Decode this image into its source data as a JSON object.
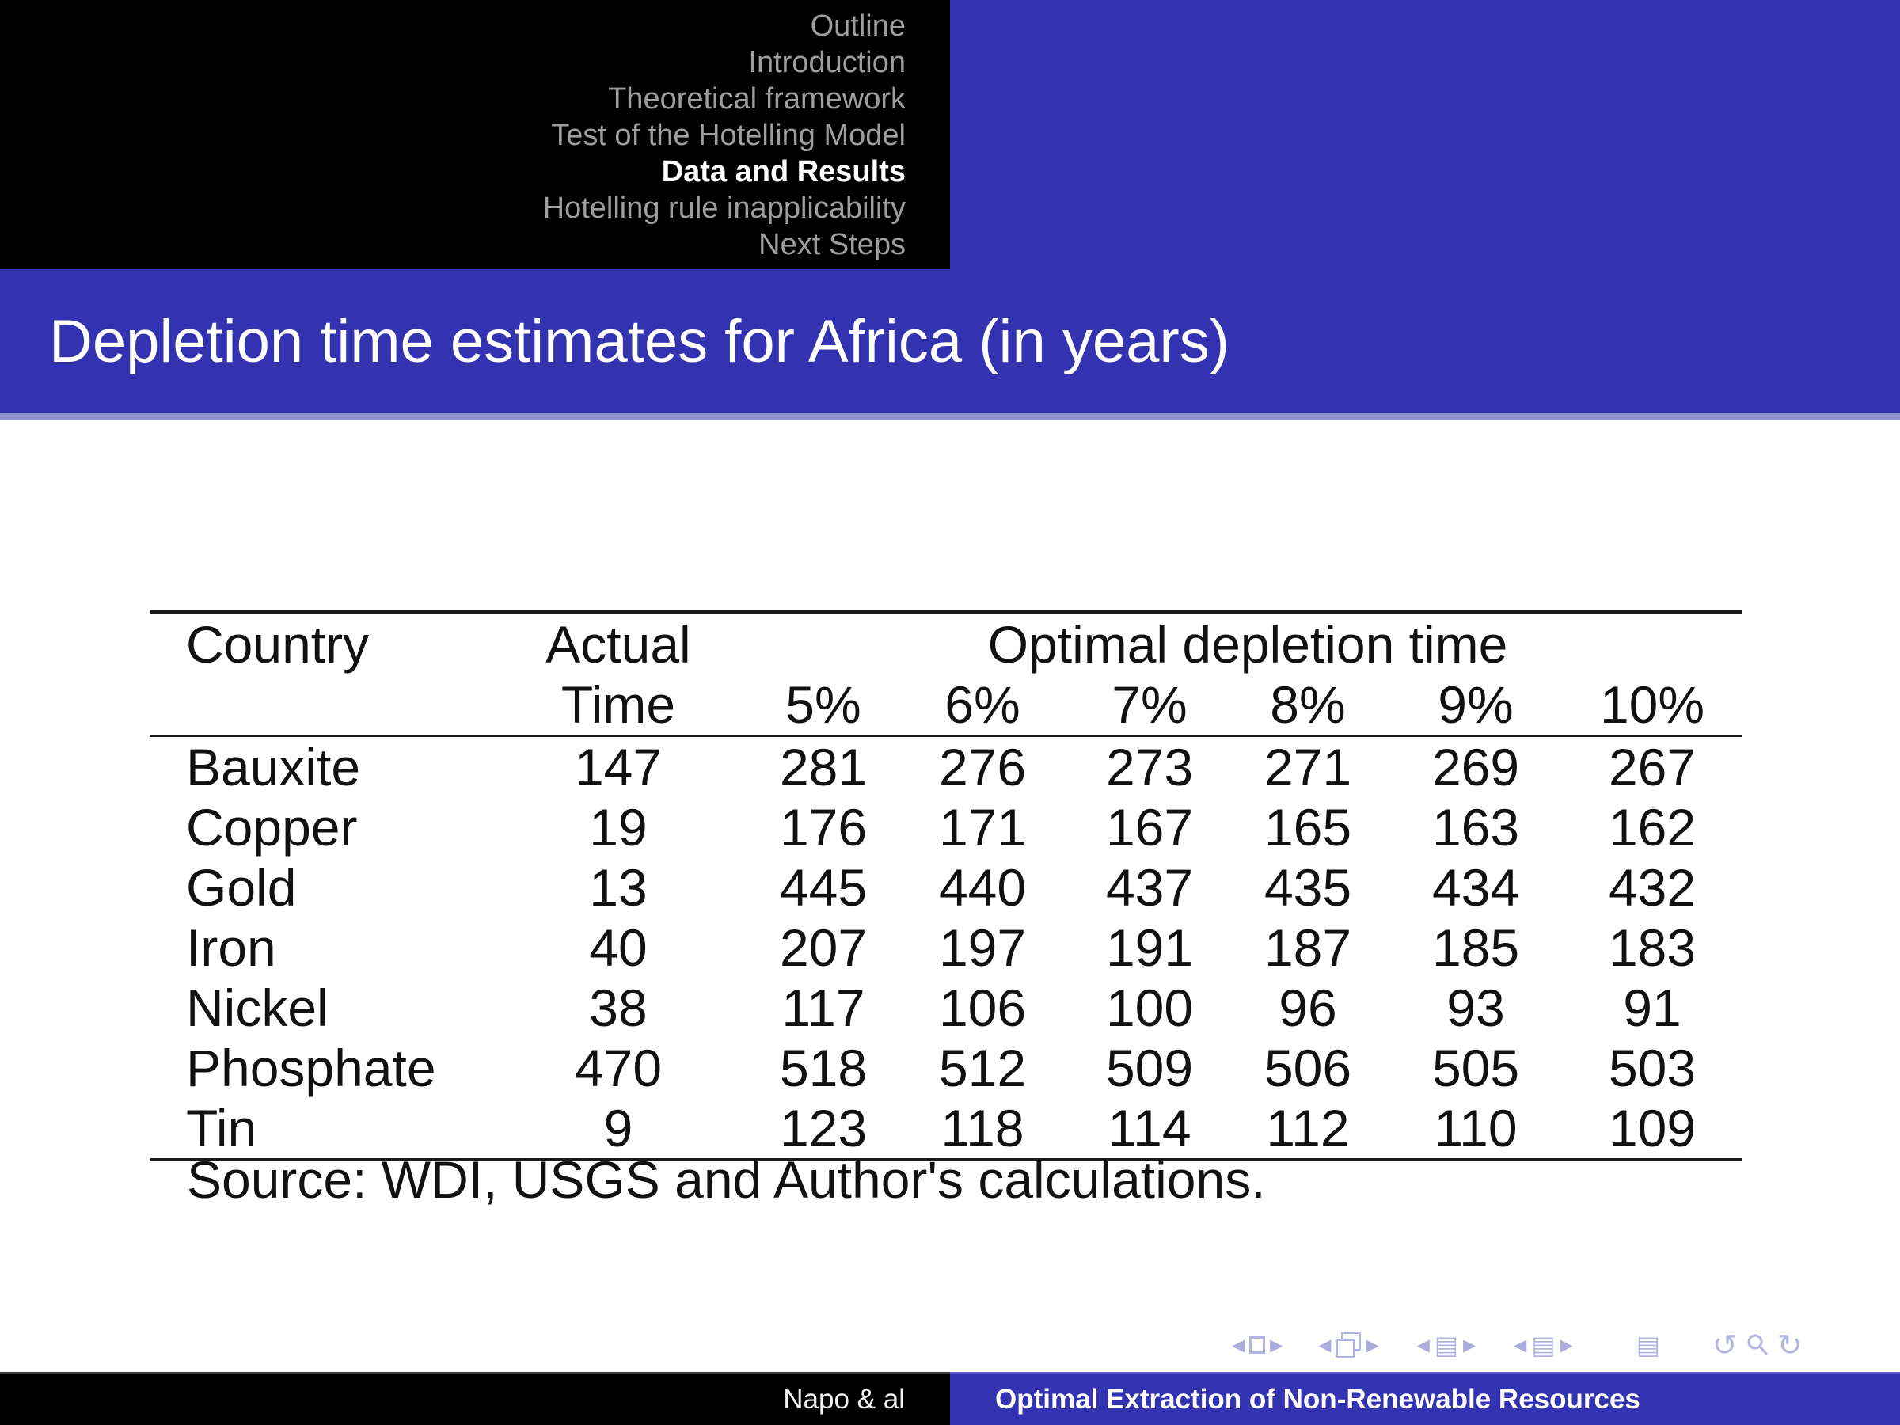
{
  "colors": {
    "accent_blue": "#3333b2",
    "title_strip": "#8e90ce",
    "nav_inactive_text": "#9e9e9e",
    "nav_active_text": "#ffffff",
    "nav_symbols": "#b4b4e0",
    "header_background": "#000000",
    "body_background": "#ffffff",
    "table_text": "#111111"
  },
  "header": {
    "nav_items": [
      {
        "label": "Outline",
        "active": false
      },
      {
        "label": "Introduction",
        "active": false
      },
      {
        "label": "Theoretical framework",
        "active": false
      },
      {
        "label": "Test of the Hotelling Model",
        "active": false
      },
      {
        "label": "Data and Results",
        "active": true
      },
      {
        "label": "Hotelling rule inapplicability",
        "active": false
      },
      {
        "label": "Next Steps",
        "active": false
      }
    ]
  },
  "title_bar": {
    "title": "Depletion time estimates for Africa (in years)"
  },
  "table": {
    "col_country_header": "Country",
    "col_actual_header_line1": "Actual",
    "col_actual_header_line2": "Time",
    "span_header": "Optimal depletion time",
    "rate_headers": [
      "5%",
      "6%",
      "7%",
      "8%",
      "9%",
      "10%"
    ],
    "rows": [
      {
        "country": "Bauxite",
        "actual": "147",
        "values": [
          "281",
          "276",
          "273",
          "271",
          "269",
          "267"
        ]
      },
      {
        "country": "Copper",
        "actual": "19",
        "values": [
          "176",
          "171",
          "167",
          "165",
          "163",
          "162"
        ]
      },
      {
        "country": "Gold",
        "actual": "13",
        "values": [
          "445",
          "440",
          "437",
          "435",
          "434",
          "432"
        ]
      },
      {
        "country": "Iron",
        "actual": "40",
        "values": [
          "207",
          "197",
          "191",
          "187",
          "185",
          "183"
        ]
      },
      {
        "country": "Nickel",
        "actual": "38",
        "values": [
          "117",
          "106",
          "100",
          "96",
          "93",
          "91"
        ]
      },
      {
        "country": "Phosphate",
        "actual": "470",
        "values": [
          "518",
          "512",
          "509",
          "506",
          "505",
          "503"
        ]
      },
      {
        "country": "Tin",
        "actual": "9",
        "values": [
          "123",
          "118",
          "114",
          "112",
          "110",
          "109"
        ]
      }
    ],
    "source_note": "Source: WDI, USGS and Author's calculations."
  },
  "footer": {
    "author": "Napo & al",
    "talk_title": "Optimal Extraction of Non-Renewable Resources"
  },
  "nav_symbols": [
    "prev-slide",
    "slide-box",
    "next-slide",
    "prev-frame",
    "frame-pages",
    "next-frame",
    "prev-subsection",
    "subsection-doc",
    "next-subsection",
    "prev-section",
    "section-doc",
    "next-section",
    "appendix-doc",
    "back-arrow",
    "search-magnifier",
    "forward-arrow"
  ]
}
